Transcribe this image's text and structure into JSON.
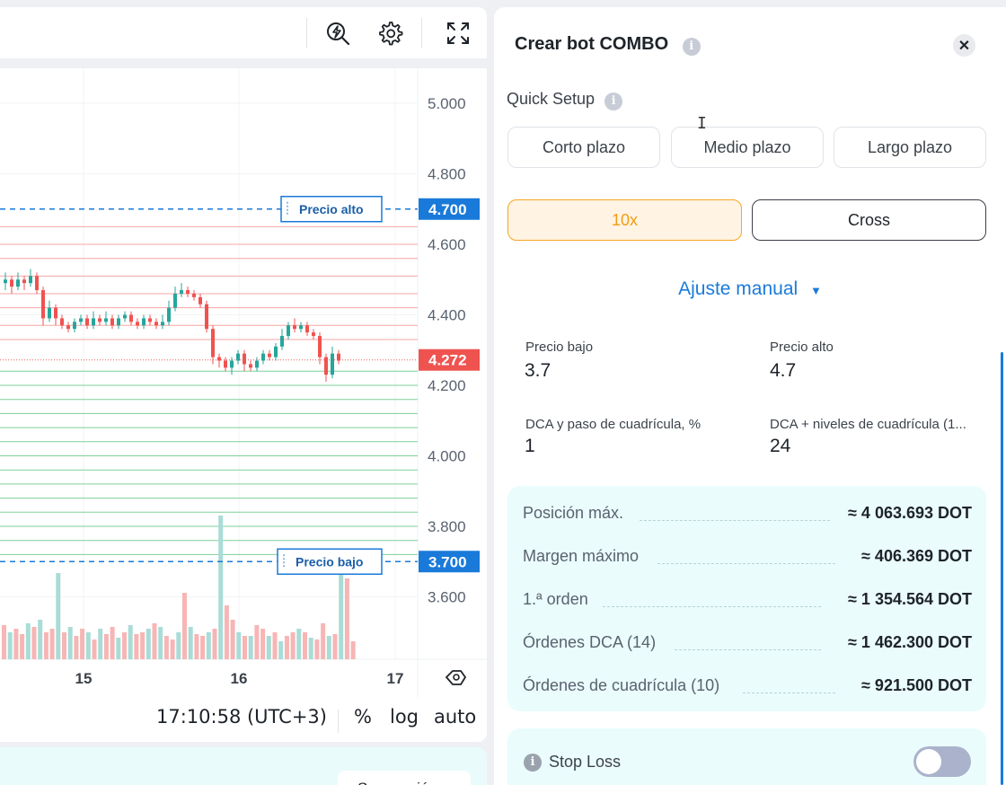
{
  "toolbar": {
    "icons": [
      "lightning-search-icon",
      "gear-icon",
      "fullscreen-icon"
    ]
  },
  "chart": {
    "price_axis": [
      "5.000",
      "4.800",
      "4.600",
      "4.400",
      "4.200",
      "4.000",
      "3.800",
      "3.600"
    ],
    "time_axis": [
      "15",
      "16",
      "17"
    ],
    "price_high_label": "Precio alto",
    "price_high_value": "4.700",
    "price_low_label": "Precio bajo",
    "price_low_value": "3.700",
    "current_price": "4.272",
    "colors": {
      "up": "#26a69a",
      "down": "#ef5350",
      "accent": "#1a7ad9"
    }
  },
  "chart_footer": {
    "time": "17:10:58 (UTC+3)",
    "percent": "%",
    "log": "log",
    "auto": "auto"
  },
  "below": {
    "button": "Suspensión"
  },
  "panel": {
    "title": "Crear bot COMBO",
    "info": "i",
    "close": "✕",
    "quick_setup": {
      "label": "Quick Setup",
      "options": [
        "Corto plazo",
        "Medio plazo",
        "Largo plazo"
      ]
    },
    "leverage": "10x",
    "margin_mode": "Cross",
    "manual_label": "Ajuste manual",
    "fields": {
      "price_low": {
        "label": "Precio bajo",
        "value": "3.7"
      },
      "price_high": {
        "label": "Precio alto",
        "value": "4.7"
      },
      "dca_step": {
        "label": "DCA y paso de cuadrícula, %",
        "value": "1"
      },
      "dca_levels": {
        "label": "DCA + niveles de cuadrícula (1...",
        "value": "24"
      }
    },
    "summary": [
      {
        "label": "Posición máx.",
        "value": "≈ 4 063.693 DOT"
      },
      {
        "label": "Margen máximo",
        "value": "≈ 406.369 DOT"
      },
      {
        "label": "1.ª orden",
        "value": "≈ 1 354.564 DOT"
      },
      {
        "label": "Órdenes DCA (14)",
        "value": "≈ 1 462.300 DOT"
      },
      {
        "label": "Órdenes de cuadrícula (10)",
        "value": "≈ 921.500 DOT"
      }
    ],
    "stop_loss": {
      "label": "Stop Loss",
      "enabled": false
    }
  }
}
